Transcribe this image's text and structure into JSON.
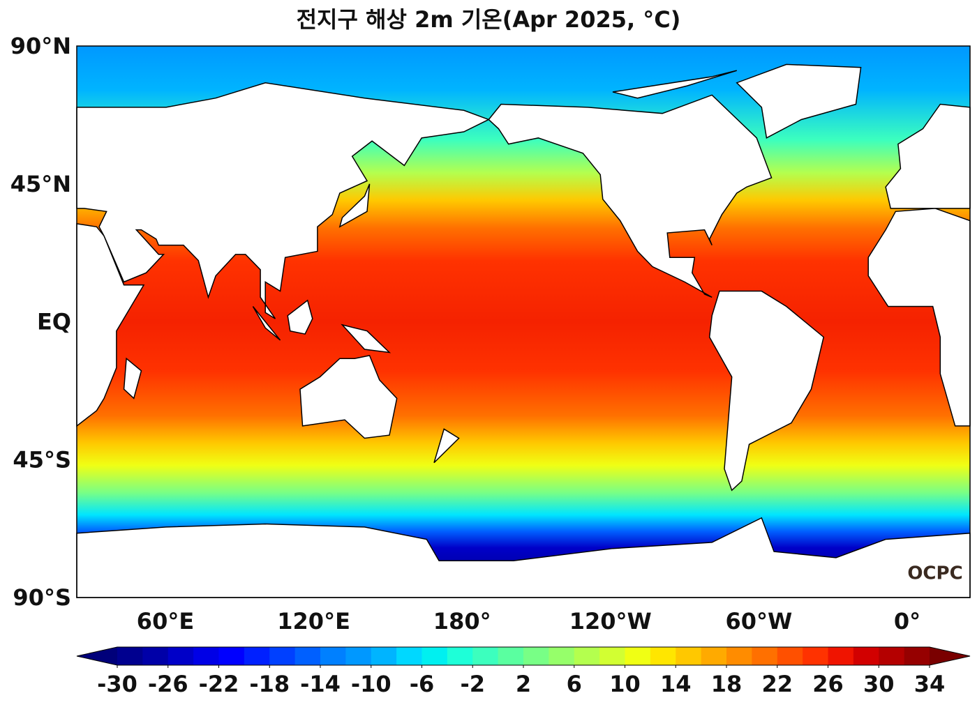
{
  "title": "전지구 해상 2m 기온(Apr 2025, °C)",
  "lat_labels": [
    "90°N",
    "45°N",
    "EQ",
    "45°S",
    "90°S"
  ],
  "lon_labels": [
    "60°E",
    "120°E",
    "180°",
    "120°W",
    "60°W",
    "0°"
  ],
  "logo": "OCPC",
  "colorbar": {
    "ticks": [
      -30,
      -26,
      -22,
      -18,
      -14,
      -10,
      -6,
      -2,
      2,
      6,
      10,
      14,
      18,
      22,
      26,
      30,
      34
    ],
    "colors": [
      "#00008f",
      "#0000a8",
      "#0000c8",
      "#0000e6",
      "#0000ff",
      "#0020ff",
      "#0040ff",
      "#0060ff",
      "#0080ff",
      "#0098ff",
      "#00b4ff",
      "#00d8ff",
      "#00f0f0",
      "#1effd8",
      "#3cffbe",
      "#5affa0",
      "#78ff86",
      "#96ff6a",
      "#b4ff4e",
      "#d2ff32",
      "#f0ff14",
      "#ffe600",
      "#ffc800",
      "#ffaa00",
      "#ff8c00",
      "#ff7000",
      "#ff5000",
      "#ff3200",
      "#f01400",
      "#d20000",
      "#b40000",
      "#960000"
    ],
    "under_color": "#00007a",
    "over_color": "#7a0000"
  }
}
